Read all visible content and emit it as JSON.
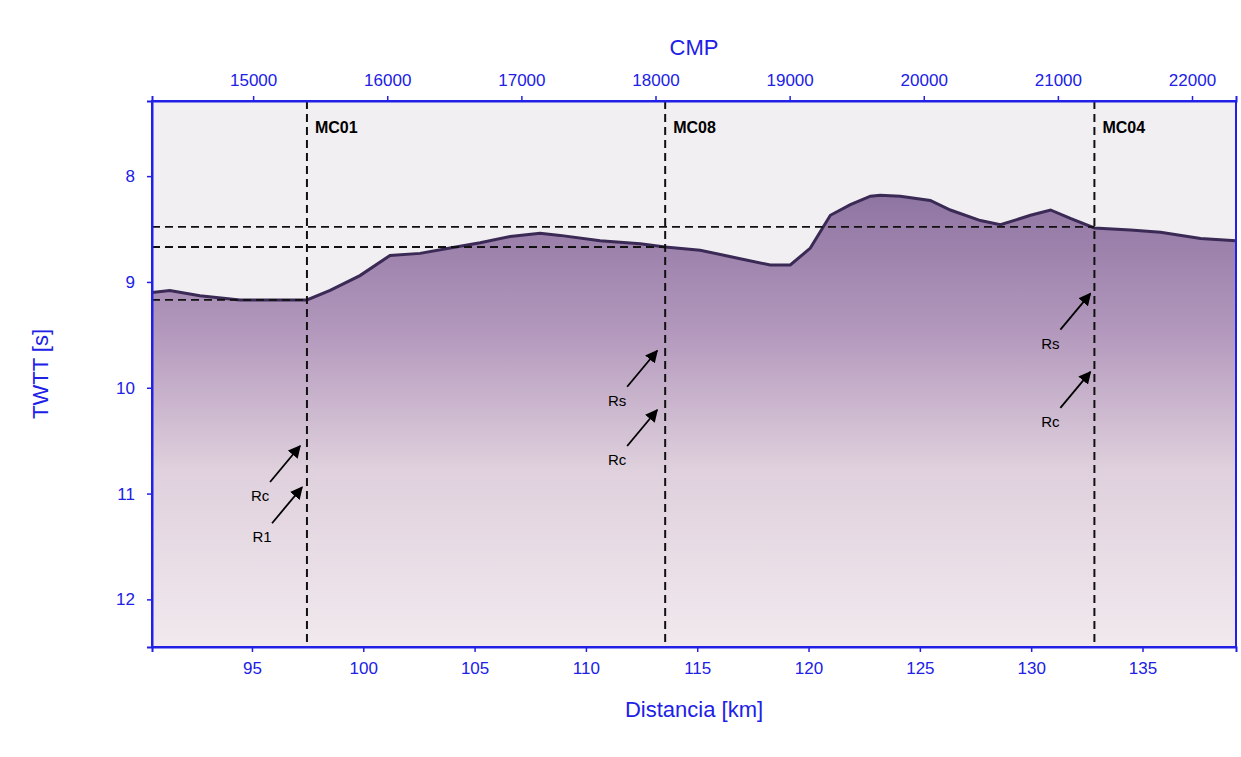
{
  "chart_data": {
    "type": "seismic_section",
    "x_label": "Distancia [km]",
    "y_label": "TWTT [s]",
    "x2_label": "CMP",
    "xlim": [
      90.51,
      139.2
    ],
    "xticks": [
      95,
      100,
      105,
      110,
      115,
      120,
      125,
      130,
      135
    ],
    "x2lim": [
      14246,
      22328
    ],
    "x2ticks": [
      15000,
      16000,
      17000,
      18000,
      19000,
      20000,
      21000,
      22000
    ],
    "ylim": [
      12.45,
      7.29
    ],
    "yticks": [
      8,
      9,
      10,
      11,
      12
    ],
    "series": [
      {
        "type": "line",
        "color": "#3a2a55",
        "x": [
          90.51,
          91.31,
          92.66,
          94.46,
          96.26,
          97.47,
          98.51,
          99.85,
          101.2,
          102.55,
          103.9,
          105.25,
          106.6,
          107.94,
          108.84,
          110.64,
          112.44,
          113.56,
          115.13,
          116.93,
          118.28,
          119.18,
          120.08,
          120.98,
          121.88,
          122.78,
          123.22,
          124.12,
          125.47,
          126.37,
          127.72,
          128.62,
          129.97,
          130.87,
          131.76,
          132.84,
          134.46,
          135.81,
          137.61,
          139.2
        ],
        "values": [
          9.1,
          9.08,
          9.13,
          9.17,
          9.17,
          9.17,
          9.08,
          8.94,
          8.75,
          8.73,
          8.68,
          8.63,
          8.57,
          8.54,
          8.56,
          8.61,
          8.64,
          8.67,
          8.7,
          8.78,
          8.84,
          8.84,
          8.68,
          8.37,
          8.27,
          8.19,
          8.18,
          8.19,
          8.23,
          8.32,
          8.42,
          8.46,
          8.37,
          8.32,
          8.4,
          8.49,
          8.51,
          8.53,
          8.59,
          8.61
        ]
      }
    ],
    "sites": [
      {
        "label": "MC01",
        "x": 97.47,
        "seafloor": 9.17
      },
      {
        "label": "MC08",
        "x": 113.56,
        "seafloor": 8.67
      },
      {
        "label": "MC04",
        "x": 132.84,
        "seafloor": 8.48
      }
    ],
    "annotations": [
      {
        "text": "Rc",
        "x": 97.16,
        "y": 10.55
      },
      {
        "text": "R1",
        "x": 97.25,
        "y": 10.94
      },
      {
        "text": "Rs",
        "x": 113.2,
        "y": 9.65
      },
      {
        "text": "Rc",
        "x": 113.2,
        "y": 10.21
      },
      {
        "text": "Rs",
        "x": 132.66,
        "y": 9.11
      },
      {
        "text": "Rc",
        "x": 132.66,
        "y": 9.85
      }
    ]
  }
}
